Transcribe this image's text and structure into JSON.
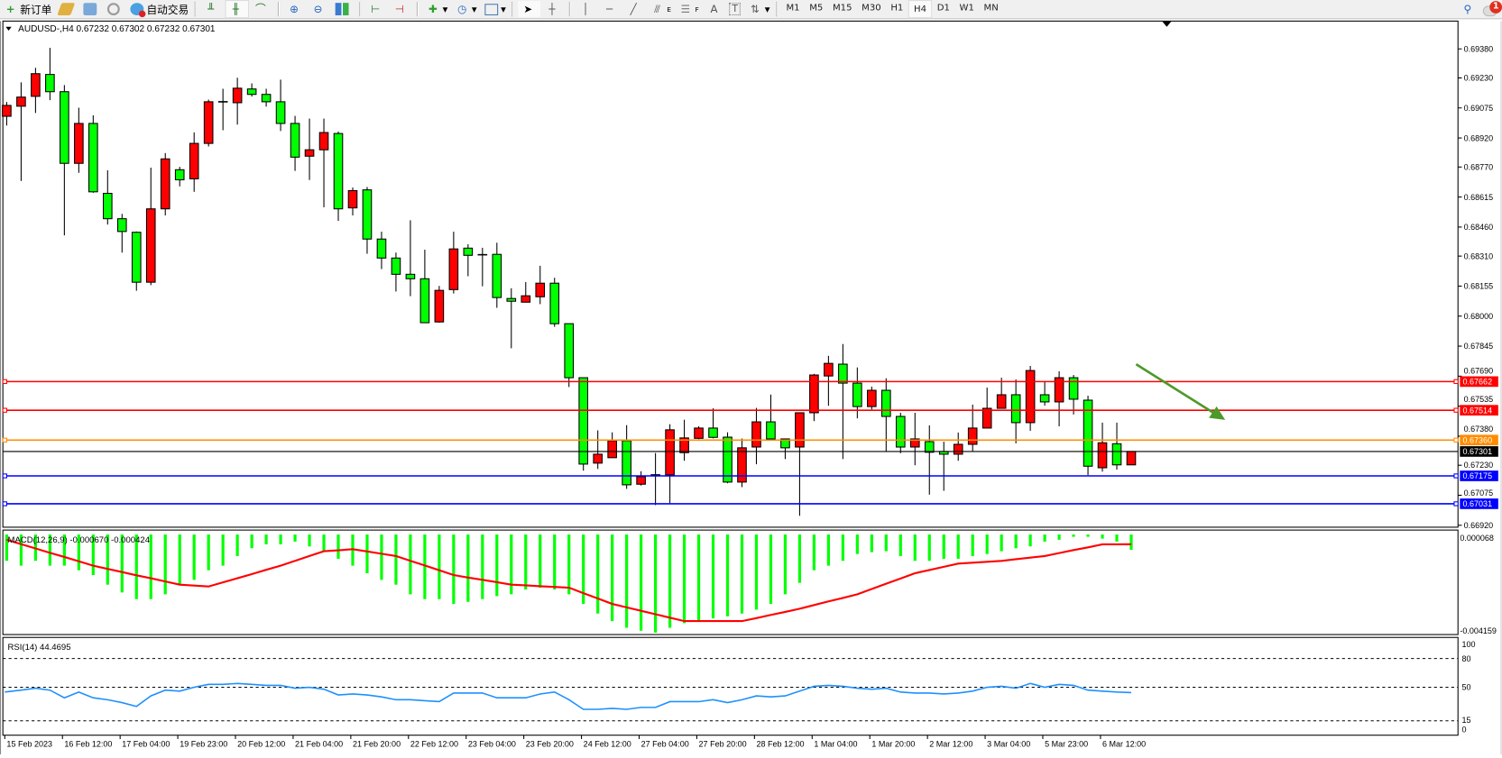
{
  "toolbar": {
    "new_order": "新订单",
    "auto_trading": "自动交易",
    "timeframes": [
      "M1",
      "M5",
      "M15",
      "M30",
      "H1",
      "H4",
      "D1",
      "W1",
      "MN"
    ],
    "active_timeframe": "H4",
    "notification_count": "1",
    "tool_labels": {
      "fibo_e": "E",
      "fibo_f": "F",
      "text": "A",
      "label": "T"
    }
  },
  "chart": {
    "header": "AUDUSD-,H4  0.67232 0.67302 0.67232 0.67301",
    "colors": {
      "bull": "#ff0000",
      "bear": "#00ff00",
      "outline": "#000000"
    },
    "price_ticks": [
      "0.69380",
      "0.69230",
      "0.69075",
      "0.68920",
      "0.68770",
      "0.68615",
      "0.68460",
      "0.68310",
      "0.68155",
      "0.68000",
      "0.67845",
      "0.67690",
      "0.67535",
      "0.67380",
      "0.67230",
      "0.67075",
      "0.66920"
    ],
    "hlines": [
      {
        "price": "0.67662",
        "color": "#ff0000"
      },
      {
        "price": "0.67514",
        "color": "#ff0000"
      },
      {
        "price": "0.67360",
        "color": "#ff8c00"
      },
      {
        "price": "0.67175",
        "color": "#0000ff"
      },
      {
        "price": "0.67031",
        "color": "#0000ff"
      }
    ],
    "current_price": "0.67301",
    "trend_arrow_color": "#4c9a2a",
    "date_labels": [
      "15 Feb 2023",
      "16 Feb 12:00",
      "17 Feb 04:00",
      "19 Feb 23:00",
      "20 Feb 12:00",
      "21 Feb 04:00",
      "21 Feb 20:00",
      "22 Feb 12:00",
      "23 Feb 04:00",
      "23 Feb 20:00",
      "24 Feb 12:00",
      "27 Feb 04:00",
      "27 Feb 20:00",
      "28 Feb 12:00",
      "1 Mar 04:00",
      "1 Mar 20:00",
      "2 Mar 12:00",
      "3 Mar 04:00",
      "5 Mar 23:00",
      "6 Mar 12:00"
    ]
  },
  "macd": {
    "label": "MACD(12,26,9) -0.000670 -0.000424",
    "scale_top": "0.000068",
    "scale_bottom": "-0.004159",
    "hist_color": "#00ff00",
    "signal_color": "#ff0000"
  },
  "rsi": {
    "label": "RSI(14) 44.4695",
    "levels": [
      "100",
      "80",
      "50",
      "15",
      "0"
    ],
    "line_color": "#1e90ff"
  },
  "chart_data": [
    {
      "type": "candlestick",
      "title": "AUDUSD-,H4",
      "ylim": [
        0.6692,
        0.6938
      ],
      "ohlc": [
        [
          0.69032,
          0.69106,
          0.68984,
          0.69088
        ],
        [
          0.69084,
          0.69207,
          0.68698,
          0.69131
        ],
        [
          0.69135,
          0.69282,
          0.69049,
          0.69252
        ],
        [
          0.69248,
          0.69385,
          0.69115,
          0.69159
        ],
        [
          0.69159,
          0.69193,
          0.68417,
          0.68789
        ],
        [
          0.68789,
          0.69076,
          0.6874,
          0.68995
        ],
        [
          0.68995,
          0.69037,
          0.68637,
          0.68642
        ],
        [
          0.68634,
          0.68753,
          0.68473,
          0.68503
        ],
        [
          0.68503,
          0.68528,
          0.68328,
          0.68437
        ],
        [
          0.68433,
          0.68437,
          0.68131,
          0.68175
        ],
        [
          0.68175,
          0.68767,
          0.6816,
          0.68554
        ],
        [
          0.68554,
          0.68842,
          0.6852,
          0.68812
        ],
        [
          0.68756,
          0.68771,
          0.6867,
          0.68704
        ],
        [
          0.68709,
          0.68949,
          0.68642,
          0.68892
        ],
        [
          0.68892,
          0.69118,
          0.68876,
          0.69107
        ],
        [
          0.69106,
          0.69174,
          0.6896,
          0.69107
        ],
        [
          0.69102,
          0.69231,
          0.68989,
          0.69177
        ],
        [
          0.69173,
          0.69202,
          0.69134,
          0.69145
        ],
        [
          0.69145,
          0.69174,
          0.69082,
          0.69107
        ],
        [
          0.69107,
          0.69221,
          0.68956,
          0.68995
        ],
        [
          0.68995,
          0.69034,
          0.6875,
          0.68821
        ],
        [
          0.68826,
          0.6902,
          0.68703,
          0.68859
        ],
        [
          0.68859,
          0.6902,
          0.68562,
          0.68948
        ],
        [
          0.68943,
          0.68953,
          0.68492,
          0.68554
        ],
        [
          0.68559,
          0.68664,
          0.6852,
          0.68648
        ],
        [
          0.68652,
          0.68667,
          0.68322,
          0.68398
        ],
        [
          0.68398,
          0.68436,
          0.68243,
          0.683
        ],
        [
          0.683,
          0.68328,
          0.68127,
          0.68216
        ],
        [
          0.68216,
          0.68495,
          0.68103,
          0.68193
        ],
        [
          0.68193,
          0.68343,
          0.67966,
          0.67966
        ],
        [
          0.6797,
          0.68156,
          0.67966,
          0.68133
        ],
        [
          0.68137,
          0.68436,
          0.68117,
          0.68347
        ],
        [
          0.68351,
          0.68371,
          0.68206,
          0.68314
        ],
        [
          0.68317,
          0.68353,
          0.68154,
          0.68317
        ],
        [
          0.68319,
          0.68379,
          0.68043,
          0.68096
        ],
        [
          0.68091,
          0.68144,
          0.67834,
          0.68077
        ],
        [
          0.68072,
          0.68176,
          0.68072,
          0.68105
        ],
        [
          0.681,
          0.6826,
          0.68062,
          0.6817
        ],
        [
          0.6817,
          0.68198,
          0.67945,
          0.67961
        ],
        [
          0.67961,
          0.67961,
          0.67634,
          0.67682
        ],
        [
          0.67682,
          0.67682,
          0.67202,
          0.67236
        ],
        [
          0.67241,
          0.6741,
          0.67211,
          0.67287
        ],
        [
          0.67269,
          0.674,
          0.67269,
          0.67357
        ],
        [
          0.67357,
          0.67437,
          0.67108,
          0.67129
        ],
        [
          0.67132,
          0.67199,
          0.67125,
          0.67171
        ],
        [
          0.6718,
          0.67293,
          0.67024,
          0.6718
        ],
        [
          0.6718,
          0.67442,
          0.67034,
          0.67413
        ],
        [
          0.67295,
          0.67465,
          0.67253,
          0.67371
        ],
        [
          0.67369,
          0.67431,
          0.67365,
          0.67422
        ],
        [
          0.67422,
          0.67524,
          0.67369,
          0.67374
        ],
        [
          0.67375,
          0.674,
          0.67137,
          0.67143
        ],
        [
          0.67143,
          0.67368,
          0.67117,
          0.6732
        ],
        [
          0.67324,
          0.67526,
          0.67235,
          0.67454
        ],
        [
          0.67454,
          0.67595,
          0.67366,
          0.67366
        ],
        [
          0.67366,
          0.67366,
          0.67262,
          0.6732
        ],
        [
          0.67324,
          0.67501,
          0.66969,
          0.67501
        ],
        [
          0.67501,
          0.67702,
          0.67458,
          0.67696
        ],
        [
          0.67691,
          0.67795,
          0.67537,
          0.67756
        ],
        [
          0.67752,
          0.67856,
          0.67262,
          0.67654
        ],
        [
          0.67654,
          0.67735,
          0.67472,
          0.67533
        ],
        [
          0.67533,
          0.67636,
          0.67518,
          0.67617
        ],
        [
          0.67617,
          0.67679,
          0.67301,
          0.67482
        ],
        [
          0.67482,
          0.67501,
          0.67292,
          0.67324
        ],
        [
          0.67324,
          0.67501,
          0.6723,
          0.67366
        ],
        [
          0.67352,
          0.67436,
          0.67078,
          0.67297
        ],
        [
          0.67301,
          0.67352,
          0.67098,
          0.67287
        ],
        [
          0.67287,
          0.67399,
          0.67253,
          0.67338
        ],
        [
          0.67338,
          0.67543,
          0.67301,
          0.67422
        ],
        [
          0.67422,
          0.67631,
          0.67422,
          0.67524
        ],
        [
          0.67524,
          0.67682,
          0.67524,
          0.67594
        ],
        [
          0.67594,
          0.67673,
          0.67343,
          0.6745
        ],
        [
          0.6745,
          0.67743,
          0.67408,
          0.67719
        ],
        [
          0.67594,
          0.67659,
          0.67538,
          0.67557
        ],
        [
          0.67557,
          0.67715,
          0.67431,
          0.67682
        ],
        [
          0.67682,
          0.67696,
          0.67492,
          0.67571
        ],
        [
          0.67566,
          0.67589,
          0.67179,
          0.67225
        ],
        [
          0.67217,
          0.6745,
          0.67197,
          0.67346
        ],
        [
          0.67341,
          0.6745,
          0.67207,
          0.67232
        ],
        [
          0.67232,
          0.67302,
          0.67232,
          0.67301
        ]
      ]
    },
    {
      "type": "bar",
      "title": "MACD(12,26,9)",
      "ylim": [
        -0.004159,
        6.8e-05
      ],
      "histogram": [
        -0.00115,
        -0.00136,
        -0.00115,
        -0.00136,
        -0.00136,
        -0.00156,
        -0.00177,
        -0.00219,
        -0.00253,
        -0.00282,
        -0.00282,
        -0.00261,
        -0.00219,
        -0.00198,
        -0.00156,
        -0.00136,
        -0.00094,
        -0.0006,
        -0.00043,
        -0.00043,
        -0.00031,
        -0.00052,
        -0.00073,
        -0.00106,
        -0.00136,
        -0.00169,
        -0.00198,
        -0.00219,
        -0.00261,
        -0.00282,
        -0.00282,
        -0.00303,
        -0.00294,
        -0.00282,
        -0.00269,
        -0.00261,
        -0.0024,
        -0.00232,
        -0.0024,
        -0.00261,
        -0.00303,
        -0.00345,
        -0.00378,
        -0.00407,
        -0.0042,
        -0.00428,
        -0.00407,
        -0.00387,
        -0.00378,
        -0.00366,
        -0.00357,
        -0.00345,
        -0.00328,
        -0.00303,
        -0.00261,
        -0.00211,
        -0.00156,
        -0.00136,
        -0.00115,
        -0.00085,
        -0.00077,
        -0.00073,
        -0.00094,
        -0.00115,
        -0.00115,
        -0.00106,
        -0.00106,
        -0.00094,
        -0.00085,
        -0.00073,
        -0.0006,
        -0.00052,
        -0.00031,
        -0.00023,
        -0.0001,
        -0.0001,
        -0.00018,
        -0.00031,
        -0.00067
      ],
      "signal": [
        -0.00023,
        -0.00042,
        -0.00061,
        -0.0008,
        -0.00098,
        -0.00117,
        -0.00136,
        -0.0015,
        -0.00164,
        -0.00178,
        -0.00191,
        -0.00205,
        -0.00219,
        -0.00223,
        -0.00227,
        -0.00209,
        -0.00191,
        -0.00173,
        -0.00154,
        -0.00136,
        -0.00115,
        -0.00094,
        -0.00073,
        -0.00069,
        -0.00064,
        -0.00074,
        -0.00084,
        -0.00094,
        -0.00115,
        -0.00135,
        -0.00156,
        -0.00177,
        -0.00188,
        -0.00198,
        -0.00208,
        -0.00219,
        -0.00222,
        -0.00226,
        -0.00229,
        -0.00232,
        -0.00256,
        -0.00279,
        -0.00303,
        -0.00318,
        -0.00333,
        -0.00348,
        -0.00363,
        -0.00378,
        -0.00378,
        -0.00378,
        -0.00378,
        -0.00378,
        -0.00365,
        -0.00351,
        -0.00338,
        -0.00324,
        -0.00308,
        -0.00292,
        -0.00277,
        -0.00261,
        -0.00238,
        -0.00215,
        -0.00192,
        -0.00169,
        -0.00155,
        -0.00141,
        -0.00127,
        -0.00123,
        -0.00119,
        -0.00115,
        -0.00108,
        -0.00101,
        -0.00094,
        -0.00081,
        -0.00068,
        -0.00056,
        -0.00043,
        -0.00043,
        -0.000424
      ]
    },
    {
      "type": "line",
      "title": "RSI(14)",
      "ylim": [
        0,
        100
      ],
      "levels": [
        80,
        50,
        15
      ],
      "values": [
        45,
        47,
        49,
        47,
        39,
        45,
        39,
        37,
        34,
        30,
        41,
        47,
        46,
        50,
        53,
        53,
        54,
        53,
        52,
        52,
        49,
        50,
        48,
        42,
        43,
        42,
        40,
        37,
        37,
        36,
        35,
        44,
        44,
        44,
        39,
        39,
        39,
        43,
        45,
        37,
        27,
        27,
        28,
        27,
        29,
        29,
        35,
        35,
        35,
        37,
        34,
        37,
        41,
        40,
        41,
        46,
        51,
        52,
        51,
        49,
        48,
        49,
        45,
        44,
        44,
        43,
        44,
        46,
        50,
        51,
        49,
        54,
        50,
        53,
        52,
        47,
        46,
        45,
        44.47
      ]
    }
  ]
}
